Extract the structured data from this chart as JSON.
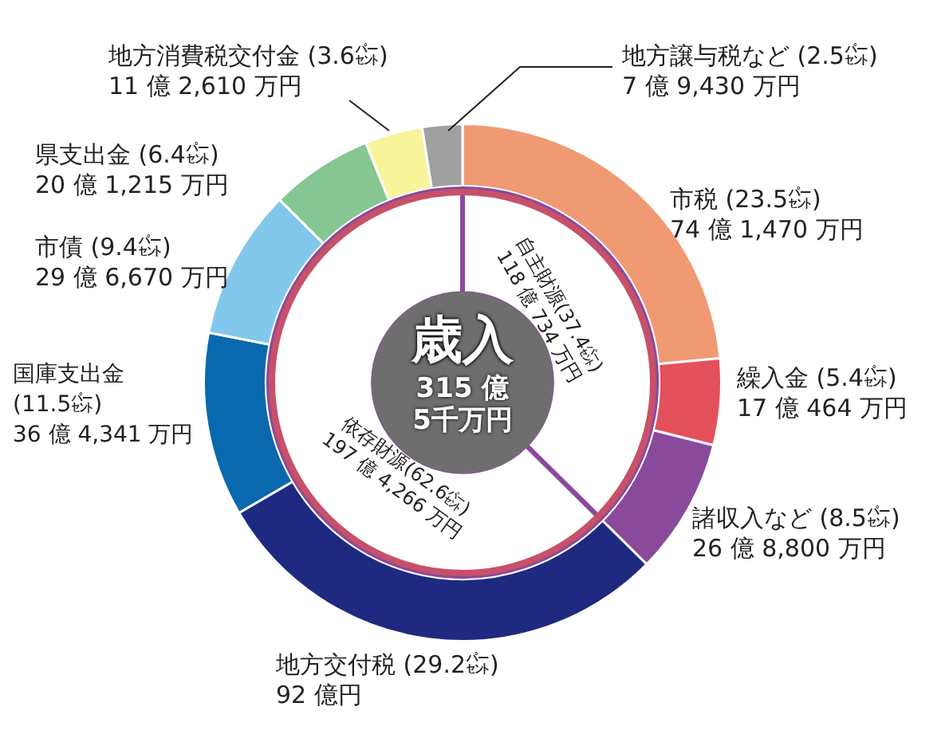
{
  "chart_data": [
    {
      "type": "donut",
      "categories": [
        "市税",
        "繰入金",
        "諸収入など",
        "地方交付税",
        "国庫支出金",
        "市債",
        "県支出金",
        "地方消費税交付金",
        "地方譲与税など"
      ],
      "values": [
        23.5,
        5.4,
        8.5,
        29.2,
        11.5,
        9.4,
        6.4,
        3.6,
        2.5
      ],
      "colors": [
        "#f09a74",
        "#e4505c",
        "#8a4a9c",
        "#1e2a80",
        "#0a68ae",
        "#82c8ec",
        "#86c692",
        "#f8f49a",
        "#a0a0a0"
      ],
      "value_labels": [
        "(23.5㌫)\n74 億 1,470 万円",
        "(5.4㌫)\n17 億 464 万円",
        "(8.5㌫)\n26 億 8,800 万円",
        "(29.2㌫)\n92 億円",
        "(11.5㌫)\n36 億 4,341 万円",
        "(9.4㌫)\n29 億 6,670 万円",
        "(6.4㌫)\n20 億 1,215 万円",
        "(3.6㌫)\n11 億 2,610 万円",
        "(2.5㌫)\n7 億 9,430 万円"
      ]
    },
    {
      "type": "donut",
      "title": "歳入",
      "subtitle": "315 億\n5千万円",
      "categories": [
        "自主財源",
        "依存財源"
      ],
      "values": [
        37.4,
        62.6
      ],
      "colors": [
        "#ffffff",
        "#ffffff"
      ],
      "value_labels": [
        "(37.4㌫)\n118 億 734 万円",
        "(62.6㌫)\n197 億 4,266 万円"
      ]
    }
  ]
}
